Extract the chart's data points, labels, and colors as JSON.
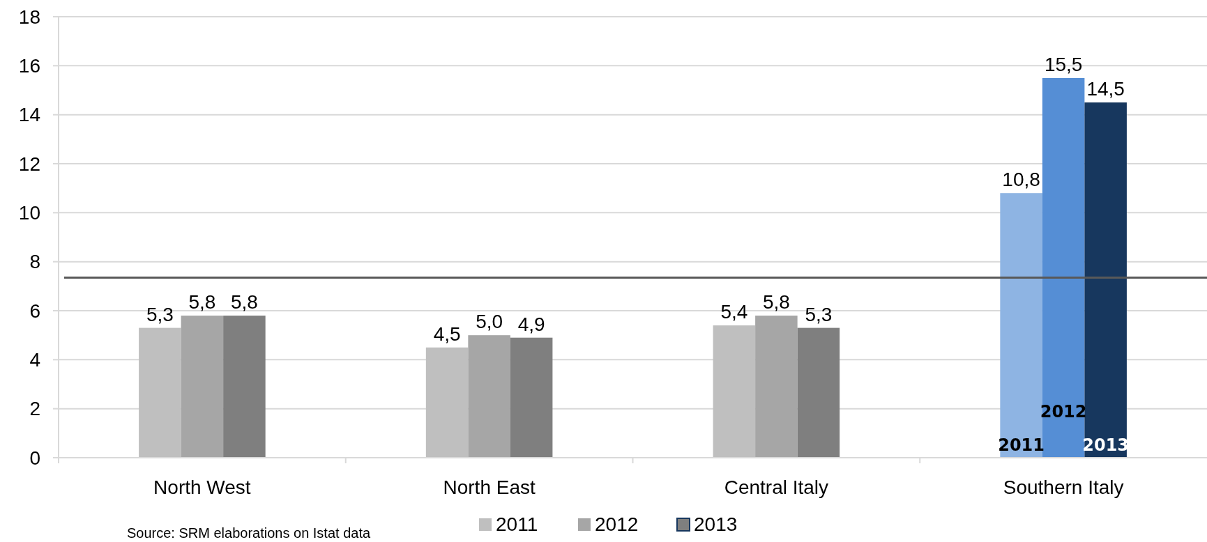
{
  "chart_data": {
    "type": "bar",
    "categories": [
      "North West",
      "North East",
      "Central Italy",
      "Southern Italy"
    ],
    "series": [
      {
        "name": "2011",
        "color": "#bfbfbf",
        "colors": [
          "#bfbfbf",
          "#bfbfbf",
          "#bfbfbf",
          "#8eb4e3"
        ],
        "values": [
          5.3,
          4.5,
          5.4,
          10.8
        ],
        "value_labels": [
          "5,3",
          "4,5",
          "5,4",
          "10,8"
        ]
      },
      {
        "name": "2012",
        "color": "#a6a6a6",
        "colors": [
          "#a6a6a6",
          "#a6a6a6",
          "#a6a6a6",
          "#558ed5"
        ],
        "values": [
          5.8,
          5.0,
          5.8,
          15.5
        ],
        "value_labels": [
          "5,8",
          "5,0",
          "5,8",
          "15,5"
        ]
      },
      {
        "name": "2013",
        "color": "#7f7f7f",
        "colors": [
          "#7f7f7f",
          "#7f7f7f",
          "#7f7f7f",
          "#17375e"
        ],
        "values": [
          5.8,
          4.9,
          5.3,
          14.5
        ],
        "value_labels": [
          "5,8",
          "4,9",
          "5,3",
          "14,5"
        ]
      }
    ],
    "ylim": [
      0,
      18
    ],
    "yticks": [
      0,
      2,
      4,
      6,
      8,
      10,
      12,
      14,
      16,
      18
    ],
    "grid": "y",
    "legend": "bottom",
    "ref_lines": [
      {
        "axis": "y",
        "value": 7.35,
        "color": "#595959"
      }
    ],
    "annotations": [
      "2011",
      "2012",
      "2013",
      "Source: SRM elaborations on Istat data"
    ]
  }
}
